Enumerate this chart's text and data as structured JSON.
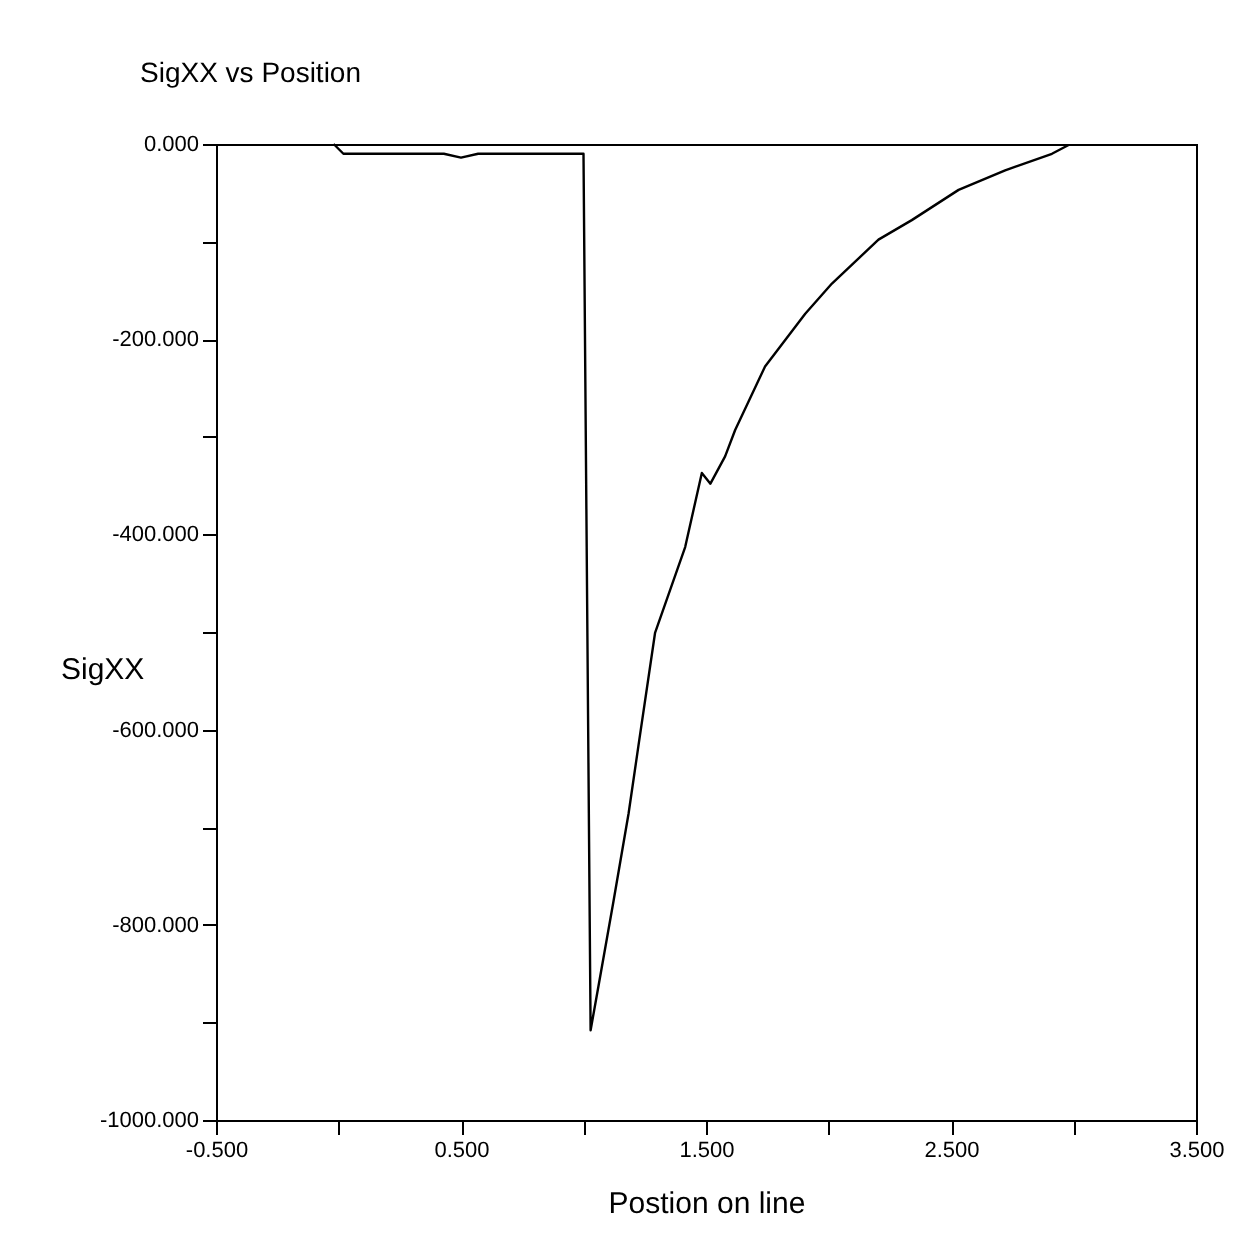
{
  "chart_data": {
    "type": "line",
    "title": "SigXX vs Position",
    "xlabel": "Postion on line",
    "ylabel": "SigXX",
    "x": [
      -0.02,
      0.02,
      0.43,
      0.5,
      0.57,
      0.993,
      1.0,
      1.029,
      1.061,
      1.121,
      1.184,
      1.224,
      1.292,
      1.415,
      1.483,
      1.518,
      1.578,
      1.619,
      1.741,
      1.905,
      2.014,
      2.204,
      2.34,
      2.531,
      2.721,
      2.912,
      2.98
    ],
    "series": [
      {
        "color": "#000000",
        "values": [
          0,
          -10,
          -10,
          -14,
          -10,
          -10,
          -10,
          -908,
          -863,
          -778,
          -686,
          -617,
          -501,
          -413,
          -337,
          -348,
          -320,
          -293,
          -228,
          -174,
          -143,
          -98,
          -78,
          -47,
          -27,
          -10,
          -1
        ]
      }
    ],
    "xlim": [
      -0.5,
      3.5
    ],
    "xticks": [
      {
        "value": -0.5,
        "label": "-0.500"
      },
      {
        "value": 0,
        "label": null
      },
      {
        "value": 0.5,
        "label": "0.500"
      },
      {
        "value": 1,
        "label": null
      },
      {
        "value": 1.5,
        "label": "1.500"
      },
      {
        "value": 2,
        "label": null
      },
      {
        "value": 2.5,
        "label": "2.500"
      },
      {
        "value": 3,
        "label": null
      },
      {
        "value": 3.5,
        "label": "3.500"
      }
    ],
    "ylim": [
      -1000,
      0
    ],
    "yticks": [
      {
        "value": -1000,
        "label": "-1000.000"
      },
      {
        "value": -900,
        "label": null
      },
      {
        "value": -800,
        "label": "-800.000"
      },
      {
        "value": -700,
        "label": null
      },
      {
        "value": -600,
        "label": "-600.000"
      },
      {
        "value": -500,
        "label": null
      },
      {
        "value": -400,
        "label": "-400.000"
      },
      {
        "value": -300,
        "label": null
      },
      {
        "value": -200,
        "label": "-200.000"
      },
      {
        "value": -100,
        "label": null
      },
      {
        "value": 0,
        "label": "0.000"
      }
    ],
    "grid": false,
    "marker": "none",
    "line_style": "solid"
  }
}
